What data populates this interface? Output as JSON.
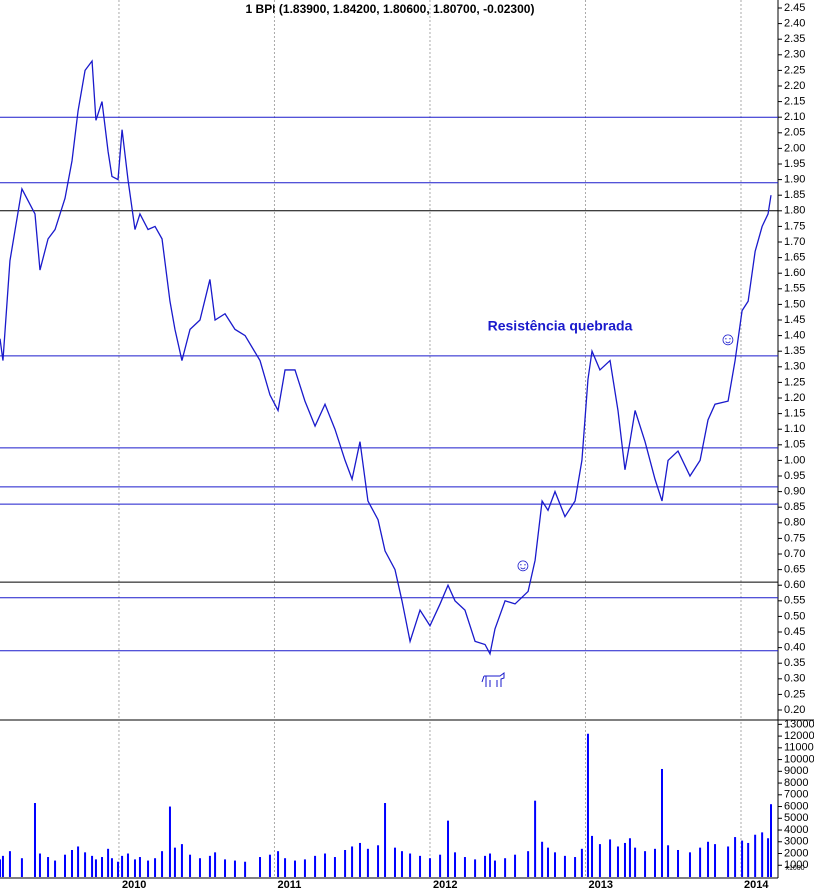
{
  "chart_data": [
    {
      "type": "line",
      "title": "1 BPI (1.83900, 1.84200, 1.80600, 1.80700, -0.02300)",
      "color": "#1a1acc",
      "xlim": [
        2009.235,
        2014.238
      ],
      "xticks": [
        2010,
        2011,
        2012,
        2013,
        2014
      ],
      "ylim": [
        0.168,
        2.4756
      ],
      "yticks": [
        {
          "value": 0.2,
          "label": "0.20"
        },
        0.25,
        {
          "value": 0.3,
          "label": "0.30"
        },
        0.35,
        {
          "value": 0.4,
          "label": "0.40"
        },
        0.45,
        {
          "value": 0.5,
          "label": "0.50"
        },
        0.55,
        {
          "value": 0.6,
          "label": "0.60"
        },
        0.65,
        {
          "value": 0.7,
          "label": "0.70"
        },
        0.75,
        {
          "value": 0.8,
          "label": "0.80"
        },
        0.85,
        {
          "value": 0.9,
          "label": "0.90"
        },
        0.95,
        {
          "value": 1,
          "label": "1.00"
        },
        1.05,
        {
          "value": 1.1,
          "label": "1.10"
        },
        1.15,
        {
          "value": 1.2,
          "label": "1.20"
        },
        1.25,
        {
          "value": 1.3,
          "label": "1.30"
        },
        1.35,
        {
          "value": 1.4,
          "label": "1.40"
        },
        1.45,
        {
          "value": 1.5,
          "label": "1.50"
        },
        1.55,
        {
          "value": 1.6,
          "label": "1.60"
        },
        1.65,
        {
          "value": 1.7,
          "label": "1.70"
        },
        1.75,
        {
          "value": 1.8,
          "label": "1.80"
        },
        1.85,
        {
          "value": 1.9,
          "label": "1.90"
        },
        1.95,
        {
          "value": 2,
          "label": "2.00"
        },
        2.05,
        {
          "value": 2.1,
          "label": "2.10"
        },
        2.15,
        {
          "value": 2.2,
          "label": "2.20"
        },
        2.25,
        {
          "value": 2.3,
          "label": "2.30"
        },
        2.35,
        {
          "value": 2.4,
          "label": "2.40"
        },
        2.45
      ],
      "x": [
        2009.235,
        2009.254,
        2009.299,
        2009.376,
        2009.46,
        2009.492,
        2009.544,
        2009.589,
        2009.653,
        2009.698,
        2009.737,
        2009.782,
        2009.827,
        2009.852,
        2009.891,
        2009.93,
        2009.955,
        2009.994,
        2010.02,
        2010.058,
        2010.103,
        2010.135,
        2010.187,
        2010.232,
        2010.277,
        2010.328,
        2010.36,
        2010.405,
        2010.457,
        2010.521,
        2010.585,
        2010.618,
        2010.682,
        2010.746,
        2010.811,
        2010.907,
        2010.971,
        2011.023,
        2011.068,
        2011.132,
        2011.196,
        2011.261,
        2011.325,
        2011.389,
        2011.454,
        2011.499,
        2011.55,
        2011.601,
        2011.666,
        2011.711,
        2011.775,
        2011.82,
        2011.872,
        2011.936,
        2012.0,
        2012.065,
        2012.116,
        2012.161,
        2012.225,
        2012.29,
        2012.354,
        2012.386,
        2012.418,
        2012.483,
        2012.547,
        2012.631,
        2012.676,
        2012.721,
        2012.759,
        2012.804,
        2012.868,
        2012.933,
        2012.977,
        2013.016,
        2013.042,
        2013.093,
        2013.158,
        2013.209,
        2013.254,
        2013.286,
        2013.319,
        2013.383,
        2013.447,
        2013.492,
        2013.531,
        2013.595,
        2013.672,
        2013.737,
        2013.788,
        2013.833,
        2013.917,
        2013.962,
        2014.007,
        2014.046,
        2014.091,
        2014.136,
        2014.174,
        2014.193
      ],
      "values": [
        1.39,
        1.32,
        1.64,
        1.87,
        1.79,
        1.61,
        1.71,
        1.74,
        1.84,
        1.96,
        2.12,
        2.25,
        2.28,
        2.09,
        2.15,
        1.99,
        1.91,
        1.9,
        2.06,
        1.9,
        1.74,
        1.79,
        1.74,
        1.75,
        1.71,
        1.51,
        1.42,
        1.32,
        1.42,
        1.45,
        1.58,
        1.45,
        1.47,
        1.42,
        1.4,
        1.32,
        1.21,
        1.16,
        1.29,
        1.29,
        1.19,
        1.11,
        1.18,
        1.1,
        1.0,
        0.94,
        1.06,
        0.87,
        0.81,
        0.71,
        0.65,
        0.55,
        0.42,
        0.52,
        0.47,
        0.54,
        0.6,
        0.55,
        0.52,
        0.42,
        0.41,
        0.38,
        0.46,
        0.55,
        0.54,
        0.58,
        0.68,
        0.87,
        0.84,
        0.9,
        0.82,
        0.87,
        1.0,
        1.26,
        1.35,
        1.29,
        1.32,
        1.16,
        0.97,
        1.06,
        1.16,
        1.06,
        0.94,
        0.87,
        1.0,
        1.03,
        0.95,
        1.0,
        1.13,
        1.18,
        1.19,
        1.32,
        1.48,
        1.51,
        1.67,
        1.75,
        1.79,
        1.85
      ],
      "levels": [
        {
          "value": 2.1,
          "color": "#1a1acc"
        },
        {
          "value": 1.89,
          "color": "#1a1acc"
        },
        {
          "value": 1.8,
          "color": "#000000"
        },
        {
          "value": 1.335,
          "color": "#1a1acc"
        },
        {
          "value": 1.04,
          "color": "#1a1acc"
        },
        {
          "value": 0.915,
          "color": "#1a1acc"
        },
        {
          "value": 0.86,
          "color": "#1a1acc"
        },
        {
          "value": 0.61,
          "color": "#000000"
        },
        {
          "value": 0.56,
          "color": "#1a1acc"
        },
        {
          "value": 0.39,
          "color": "#1a1acc"
        }
      ],
      "annotations": [
        "Resistência quebrada",
        "☺",
        "☺"
      ]
    },
    {
      "type": "bar",
      "color": "#0000ff",
      "volume_unit": "x1000",
      "xlim": [
        2009.235,
        2014.238
      ],
      "xticks": [
        2010,
        2011,
        2012,
        2013,
        2014
      ],
      "ylim": [
        0,
        13200
      ],
      "yticks": [
        1000,
        2000,
        3000,
        4000,
        5000,
        6000,
        7000,
        8000,
        9000,
        10000,
        11000,
        12000,
        13000
      ],
      "x": [
        2009.235,
        2009.254,
        2009.299,
        2009.376,
        2009.46,
        2009.492,
        2009.544,
        2009.589,
        2009.653,
        2009.698,
        2009.737,
        2009.782,
        2009.827,
        2009.852,
        2009.891,
        2009.93,
        2009.955,
        2009.994,
        2010.02,
        2010.058,
        2010.103,
        2010.135,
        2010.187,
        2010.232,
        2010.277,
        2010.328,
        2010.36,
        2010.405,
        2010.457,
        2010.521,
        2010.585,
        2010.618,
        2010.682,
        2010.746,
        2010.811,
        2010.907,
        2010.971,
        2011.023,
        2011.068,
        2011.132,
        2011.196,
        2011.261,
        2011.325,
        2011.389,
        2011.454,
        2011.499,
        2011.55,
        2011.601,
        2011.666,
        2011.711,
        2011.775,
        2011.82,
        2011.872,
        2011.936,
        2012.0,
        2012.065,
        2012.116,
        2012.161,
        2012.225,
        2012.29,
        2012.354,
        2012.386,
        2012.418,
        2012.483,
        2012.547,
        2012.631,
        2012.676,
        2012.721,
        2012.759,
        2012.804,
        2012.868,
        2012.933,
        2012.977,
        2013.016,
        2013.042,
        2013.093,
        2013.158,
        2013.209,
        2013.254,
        2013.286,
        2013.319,
        2013.383,
        2013.447,
        2013.492,
        2013.531,
        2013.595,
        2013.672,
        2013.737,
        2013.788,
        2013.833,
        2013.917,
        2013.962,
        2014.007,
        2014.046,
        2014.091,
        2014.136,
        2014.174,
        2014.193
      ],
      "values": [
        1500,
        1800,
        2200,
        1600,
        6300,
        2000,
        1700,
        1400,
        1900,
        2300,
        2600,
        2100,
        1800,
        1500,
        1700,
        2400,
        1600,
        1300,
        1800,
        2000,
        1500,
        1700,
        1400,
        1600,
        2200,
        6000,
        2500,
        2800,
        1900,
        1600,
        1800,
        2100,
        1500,
        1400,
        1300,
        1700,
        1900,
        2200,
        1600,
        1400,
        1500,
        1800,
        2000,
        1700,
        2300,
        2600,
        2900,
        2400,
        2700,
        6300,
        2500,
        2200,
        2000,
        1800,
        1600,
        1900,
        4800,
        2100,
        1700,
        1500,
        1800,
        2000,
        1400,
        1600,
        1900,
        2200,
        6500,
        3000,
        2500,
        2100,
        1800,
        1700,
        2400,
        12200,
        3500,
        2800,
        3200,
        2600,
        2900,
        3300,
        2500,
        2200,
        2400,
        9200,
        2700,
        2300,
        2100,
        2500,
        3000,
        2800,
        2600,
        3400,
        3100,
        2900,
        3600,
        3800,
        3300,
        6200
      ]
    }
  ]
}
